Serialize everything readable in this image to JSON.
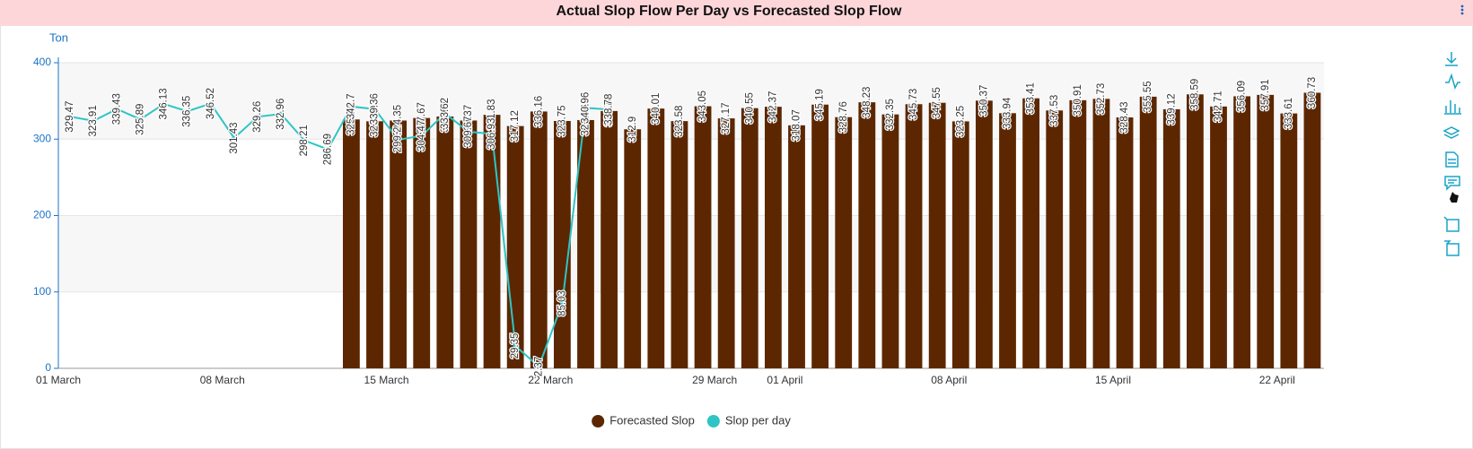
{
  "chart_data": {
    "type": "combo",
    "title": "Actual Slop Flow Per Day vs Forecasted Slop Flow",
    "y_axis_label": "Ton",
    "categories": [
      "01 March",
      null,
      null,
      null,
      null,
      null,
      null,
      "08 March",
      null,
      null,
      null,
      null,
      null,
      null,
      "15 March",
      null,
      null,
      null,
      null,
      null,
      null,
      "22 March",
      null,
      null,
      null,
      null,
      null,
      null,
      "29 March",
      null,
      null,
      "01 April",
      null,
      null,
      null,
      null,
      null,
      null,
      "08 April",
      null,
      null,
      null,
      null,
      null,
      null,
      "15 April",
      null,
      null,
      null,
      null,
      null,
      null,
      "22 April",
      null
    ],
    "series": [
      {
        "name": "Forecasted Slop",
        "type": "bar",
        "color": "#5c2700",
        "values": [
          null,
          null,
          null,
          null,
          null,
          null,
          null,
          null,
          null,
          null,
          null,
          null,
          325.74,
          323.39,
          324.35,
          327.67,
          329.62,
          324.37,
          331.83,
          317.12,
          336.16,
          323.75,
          324.96,
          336.78,
          312.9,
          340.01,
          323.58,
          343.05,
          327.17,
          340.55,
          342.37,
          318.07,
          345.19,
          328.76,
          348.23,
          332.35,
          345.73,
          347.55,
          323.25,
          350.37,
          333.94,
          353.41,
          337.53,
          350.91,
          352.73,
          328.43,
          355.55,
          339.12,
          358.59,
          342.71,
          356.09,
          357.91,
          333.61,
          360.73
        ]
      },
      {
        "name": "Slop per day",
        "type": "line",
        "color": "#2ec4c6",
        "values": [
          329.47,
          323.91,
          339.43,
          325.89,
          346.13,
          336.35,
          346.52,
          301.43,
          329.26,
          332.96,
          298.21,
          286.69,
          342.7,
          339.36,
          299.2,
          304.47,
          333.62,
          309.67,
          306.93,
          29.35,
          2.37,
          85.03,
          340.96,
          338.78,
          null,
          null,
          null,
          null,
          null,
          null,
          null,
          null,
          null,
          null,
          null,
          null,
          null,
          null,
          null,
          null,
          null,
          null,
          null,
          null,
          null,
          null,
          null,
          null,
          null,
          null,
          null,
          null,
          null,
          null
        ]
      }
    ],
    "ylim": [
      0,
      400
    ],
    "yticks": [
      0,
      100,
      200,
      300,
      400
    ],
    "grid": true,
    "legend": "bottom"
  }
}
